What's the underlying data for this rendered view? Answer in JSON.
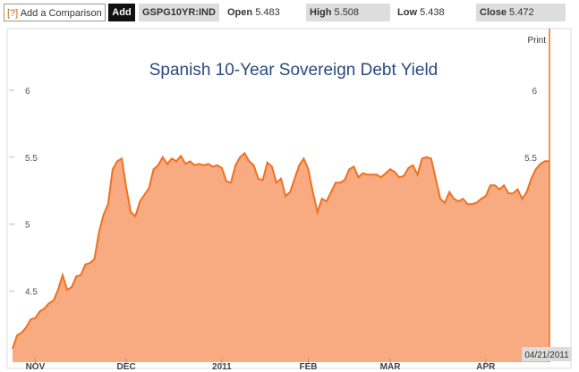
{
  "toolbar": {
    "help": "[?]",
    "input": "Add a Comparison",
    "button": "Add",
    "ticker": "GSPG10YR:IND",
    "open_label": "Open",
    "open": "5.483",
    "high_label": "High",
    "high": "5.508",
    "low_label": "Low",
    "low": "5.438",
    "close_label": "Close",
    "close": "5.472"
  },
  "chart_data": {
    "type": "area",
    "title": "Spanish 10-Year Sovereign Debt Yield",
    "print": "Print",
    "date_label": "04/21/2011",
    "categories": [
      null,
      null,
      null,
      null,
      null,
      "NOV",
      null,
      null,
      null,
      null,
      null,
      null,
      null,
      null,
      null,
      null,
      null,
      null,
      null,
      null,
      null,
      null,
      null,
      null,
      null,
      "DEC",
      null,
      null,
      null,
      null,
      null,
      null,
      null,
      null,
      null,
      null,
      null,
      null,
      null,
      null,
      null,
      null,
      null,
      null,
      null,
      null,
      "2011",
      null,
      null,
      null,
      null,
      null,
      null,
      null,
      null,
      null,
      null,
      null,
      null,
      null,
      null,
      null,
      null,
      null,
      null,
      "FEB",
      null,
      null,
      null,
      null,
      null,
      null,
      null,
      null,
      null,
      null,
      null,
      null,
      null,
      null,
      null,
      null,
      null,
      "MAR",
      null,
      null,
      null,
      null,
      null,
      null,
      null,
      null,
      null,
      null,
      null,
      null,
      null,
      null,
      null,
      null,
      null,
      null,
      null,
      null,
      "APR",
      null,
      null,
      null,
      null,
      null,
      null,
      null,
      null,
      null,
      null,
      null,
      null,
      null,
      null
    ],
    "values": [
      4.07,
      4.17,
      4.19,
      4.23,
      4.29,
      4.3,
      4.35,
      4.37,
      4.41,
      4.43,
      4.51,
      4.62,
      4.51,
      4.53,
      4.61,
      4.62,
      4.7,
      4.71,
      4.74,
      4.94,
      5.07,
      5.15,
      5.41,
      5.47,
      5.49,
      5.27,
      5.09,
      5.06,
      5.17,
      5.22,
      5.27,
      5.41,
      5.44,
      5.5,
      5.45,
      5.49,
      5.47,
      5.51,
      5.45,
      5.47,
      5.44,
      5.45,
      5.44,
      5.45,
      5.43,
      5.44,
      5.42,
      5.32,
      5.31,
      5.44,
      5.5,
      5.53,
      5.47,
      5.44,
      5.34,
      5.33,
      5.46,
      5.43,
      5.31,
      5.34,
      5.21,
      5.24,
      5.34,
      5.44,
      5.49,
      5.41,
      5.24,
      5.09,
      5.19,
      5.17,
      5.24,
      5.31,
      5.31,
      5.33,
      5.41,
      5.43,
      5.35,
      5.38,
      5.37,
      5.37,
      5.37,
      5.35,
      5.38,
      5.41,
      5.39,
      5.35,
      5.36,
      5.42,
      5.44,
      5.37,
      5.49,
      5.5,
      5.49,
      5.34,
      5.19,
      5.16,
      5.24,
      5.19,
      5.17,
      5.19,
      5.15,
      5.15,
      5.16,
      5.19,
      5.21,
      5.29,
      5.29,
      5.26,
      5.29,
      5.23,
      5.23,
      5.26,
      5.19,
      5.24,
      5.34,
      5.41,
      5.45,
      5.47,
      5.47
    ],
    "color": "#f07020",
    "fill": "#f8aa80",
    "ylim": [
      3.97,
      6.44
    ],
    "yticks": [
      4.5,
      5,
      5.5,
      6
    ],
    "grid": false
  }
}
